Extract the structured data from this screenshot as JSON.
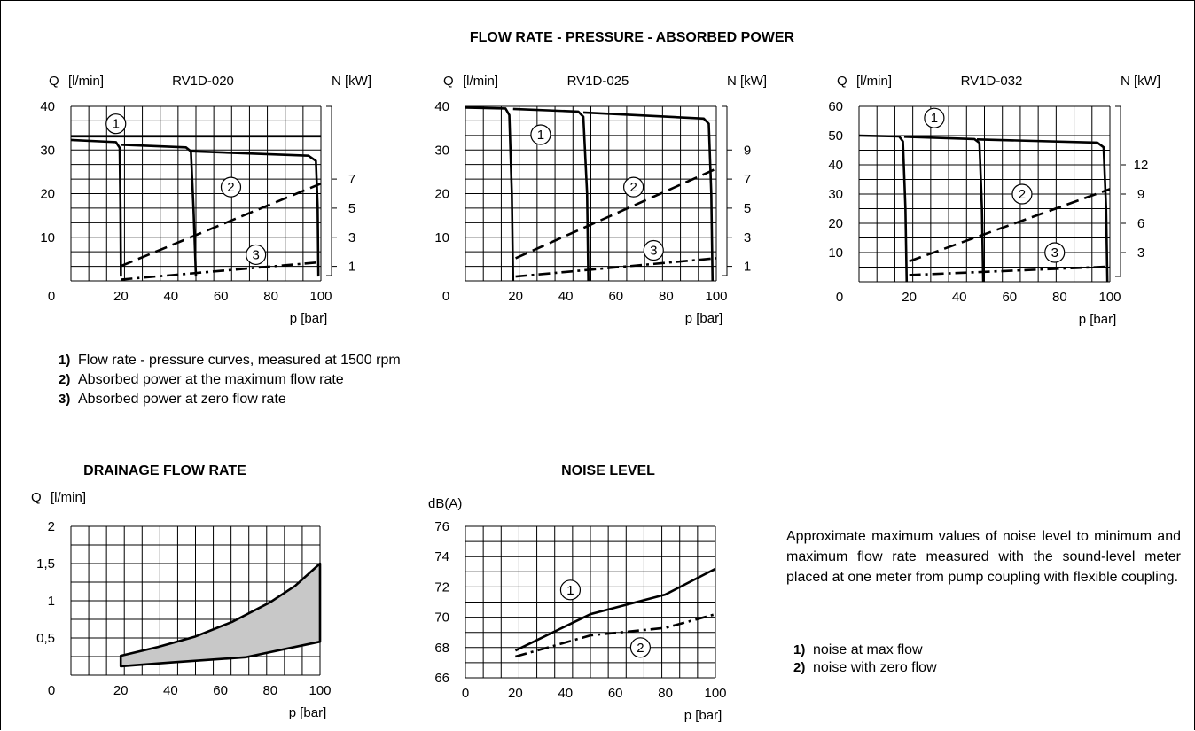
{
  "main_title": "FLOW RATE - PRESSURE - ABSORBED POWER",
  "flow_notes": [
    {
      "num": "1)",
      "text": "Flow rate - pressure curves, measured at 1500 rpm"
    },
    {
      "num": "2)",
      "text": "Absorbed power at the maximum flow rate"
    },
    {
      "num": "3)",
      "text": "Absorbed power at zero flow rate"
    }
  ],
  "noise_description": "Approximate maximum values of noise level to minimum and maximum flow rate measured with the sound-level meter placed at one meter from pump coupling with flexible coupling.",
  "noise_notes": [
    {
      "num": "1)",
      "text": "noise at max flow"
    },
    {
      "num": "2)",
      "text": "noise with zero flow"
    }
  ],
  "chart_data": [
    {
      "type": "line",
      "model": "RV1D-020",
      "ylabel_symbol": "Q",
      "ylabel_unit": "[l/min]",
      "y2label": "N [kW]",
      "xlabel": "p [bar]",
      "xlim": [
        0,
        100
      ],
      "ylim": [
        0,
        40
      ],
      "x_ticks": [
        "20",
        "40",
        "60",
        "80",
        "100"
      ],
      "x_origin_label": "0",
      "y_ticks": [
        "10",
        "20",
        "30",
        "40"
      ],
      "y2_ticks": [
        "1",
        "3",
        "5",
        "7"
      ],
      "y2_tick_pos": [
        3.33,
        10,
        16.67,
        23.33
      ],
      "ref_line_y": 33,
      "series": [
        {
          "marker": "1",
          "style": "solid",
          "label_at": [
            18,
            36
          ],
          "points": [
            [
              0,
              32.3
            ],
            [
              18,
              31.8
            ],
            [
              19.5,
              30.5
            ],
            [
              19.8,
              17
            ],
            [
              20,
              1
            ]
          ]
        },
        {
          "marker": "1",
          "style": "solid",
          "points": [
            [
              20,
              31.2
            ],
            [
              46,
              30.6
            ],
            [
              48,
              29.7
            ],
            [
              49,
              17
            ],
            [
              50,
              1
            ]
          ]
        },
        {
          "marker": "1",
          "style": "solid",
          "points": [
            [
              48,
              29.7
            ],
            [
              95,
              28.7
            ],
            [
              98,
              27.5
            ],
            [
              98.7,
              17
            ],
            [
              99,
              1
            ]
          ]
        },
        {
          "marker": "2",
          "style": "dashed",
          "label_at": [
            64,
            21.5
          ],
          "points": [
            [
              20,
              3.4
            ],
            [
              100,
              22.3
            ]
          ]
        },
        {
          "marker": "3",
          "style": "dashdot",
          "label_at": [
            74,
            6
          ],
          "points": [
            [
              20,
              0.3
            ],
            [
              100,
              4.3
            ]
          ]
        }
      ]
    },
    {
      "type": "line",
      "model": "RV1D-025",
      "ylabel_symbol": "Q",
      "ylabel_unit": "[l/min]",
      "y2label": "N [kW]",
      "xlabel": "p [bar]",
      "xlim": [
        0,
        100
      ],
      "ylim": [
        0,
        40
      ],
      "x_ticks": [
        "20",
        "40",
        "60",
        "80",
        "100"
      ],
      "x_origin_label": "0",
      "y_ticks": [
        "10",
        "20",
        "30",
        "40"
      ],
      "y2_ticks": [
        "1",
        "3",
        "5",
        "7",
        "9"
      ],
      "y2_tick_pos": [
        3.33,
        10,
        16.67,
        23.33,
        30
      ],
      "ref_line_y": null,
      "series": [
        {
          "marker": "1",
          "style": "solid",
          "label_at": [
            30,
            33.5
          ],
          "points": [
            [
              0,
              39.7
            ],
            [
              16,
              39.5
            ],
            [
              17.5,
              38
            ],
            [
              18.5,
              20
            ],
            [
              19,
              0
            ]
          ]
        },
        {
          "marker": "1",
          "style": "solid",
          "points": [
            [
              19,
              39.4
            ],
            [
              45,
              38.8
            ],
            [
              47,
              37.6
            ],
            [
              48.5,
              20
            ],
            [
              49,
              0
            ]
          ]
        },
        {
          "marker": "1",
          "style": "solid",
          "points": [
            [
              47,
              38.6
            ],
            [
              95,
              37.2
            ],
            [
              97,
              36
            ],
            [
              98,
              20
            ],
            [
              98.5,
              0
            ]
          ]
        },
        {
          "marker": "2",
          "style": "dashed",
          "label_at": [
            67,
            21.5
          ],
          "points": [
            [
              20,
              5.2
            ],
            [
              100,
              25.7
            ]
          ]
        },
        {
          "marker": "3",
          "style": "dashdot",
          "label_at": [
            75,
            7
          ],
          "points": [
            [
              20,
              1
            ],
            [
              100,
              5.2
            ]
          ]
        }
      ]
    },
    {
      "type": "line",
      "model": "RV1D-032",
      "ylabel_symbol": "Q",
      "ylabel_unit": "[l/min]",
      "y2label": "N [kW]",
      "xlabel": "p [bar]",
      "xlim": [
        0,
        100
      ],
      "ylim": [
        0,
        60
      ],
      "x_ticks": [
        "20",
        "40",
        "60",
        "80",
        "100"
      ],
      "x_origin_label": "0",
      "y_ticks": [
        "10",
        "20",
        "30",
        "40",
        "50",
        "60"
      ],
      "y2_ticks": [
        "3",
        "6",
        "9",
        "12"
      ],
      "y2_tick_pos": [
        10,
        20,
        30,
        40
      ],
      "ref_line_y": null,
      "series": [
        {
          "marker": "1",
          "style": "solid",
          "label_at": [
            30,
            56
          ],
          "points": [
            [
              0,
              50
            ],
            [
              16,
              49.7
            ],
            [
              17.5,
              48
            ],
            [
              18.5,
              25
            ],
            [
              19,
              0
            ]
          ]
        },
        {
          "marker": "1",
          "style": "solid",
          "points": [
            [
              18,
              49.6
            ],
            [
              46,
              48.8
            ],
            [
              48,
              47.5
            ],
            [
              49,
              25
            ],
            [
              49.5,
              0
            ]
          ]
        },
        {
          "marker": "1",
          "style": "solid",
          "points": [
            [
              47,
              48.7
            ],
            [
              95,
              47.6
            ],
            [
              97.5,
              46
            ],
            [
              98.5,
              25
            ],
            [
              99,
              0
            ]
          ]
        },
        {
          "marker": "2",
          "style": "dashed",
          "label_at": [
            65,
            30
          ],
          "points": [
            [
              20,
              7
            ],
            [
              100,
              31.7
            ]
          ]
        },
        {
          "marker": "3",
          "style": "dashdot",
          "label_at": [
            78,
            10
          ],
          "points": [
            [
              20,
              2.3
            ],
            [
              100,
              5.2
            ]
          ]
        }
      ]
    },
    {
      "type": "area",
      "title": "DRAINAGE FLOW RATE",
      "ylabel_symbol": "Q",
      "ylabel_unit": "[l/min]",
      "xlabel": "p [bar]",
      "xlim": [
        0,
        100
      ],
      "ylim": [
        0,
        2
      ],
      "x_ticks": [
        "20",
        "40",
        "60",
        "80",
        "100"
      ],
      "x_origin_label": "0",
      "y_ticks": [
        "0,5",
        "1",
        "1,5",
        "2"
      ],
      "upper": [
        [
          20,
          0.26
        ],
        [
          35,
          0.38
        ],
        [
          50,
          0.52
        ],
        [
          65,
          0.72
        ],
        [
          80,
          0.98
        ],
        [
          90,
          1.2
        ],
        [
          100,
          1.5
        ]
      ],
      "lower": [
        [
          20,
          0.12
        ],
        [
          40,
          0.17
        ],
        [
          70,
          0.24
        ],
        [
          100,
          0.45
        ]
      ]
    },
    {
      "type": "line",
      "title": "NOISE LEVEL",
      "ylabel": "dB(A)",
      "xlabel": "p [bar]",
      "xlim": [
        0,
        100
      ],
      "ylim": [
        66,
        76
      ],
      "x_ticks": [
        "0",
        "20",
        "40",
        "60",
        "80",
        "100"
      ],
      "y_ticks": [
        "66",
        "68",
        "70",
        "72",
        "74",
        "76"
      ],
      "series": [
        {
          "marker": "1",
          "style": "solid",
          "label_at": [
            42,
            71.8
          ],
          "points": [
            [
              20,
              67.8
            ],
            [
              50,
              70.2
            ],
            [
              80,
              71.5
            ],
            [
              100,
              73.2
            ]
          ]
        },
        {
          "marker": "2",
          "style": "dashdot",
          "label_at": [
            70,
            68
          ],
          "points": [
            [
              20,
              67.4
            ],
            [
              50,
              68.8
            ],
            [
              80,
              69.3
            ],
            [
              100,
              70.2
            ]
          ]
        }
      ]
    }
  ]
}
